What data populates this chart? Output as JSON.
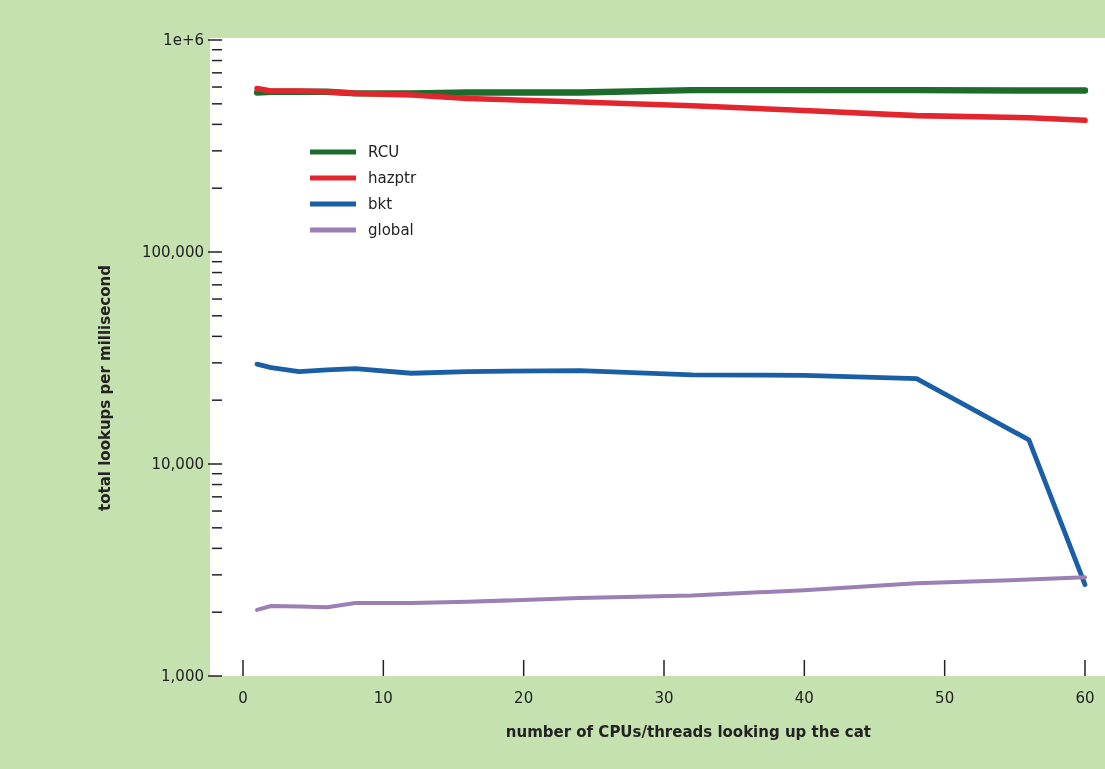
{
  "chart_data": {
    "type": "line",
    "xlabel": "number of CPUs/threads looking up the cat",
    "ylabel": "total lookups per millisecond",
    "log": "y",
    "legend": "top left",
    "x": [
      1,
      2,
      4,
      6,
      8,
      12,
      16,
      24,
      32,
      40,
      48,
      56,
      60
    ],
    "xlim": [
      -2.3,
      61.5
    ],
    "xticks": [
      0,
      10,
      20,
      30,
      40,
      50,
      60
    ],
    "ylim": [
      1000,
      1000000
    ],
    "yticks": [
      {
        "value": 1000,
        "label": "1,000"
      },
      {
        "value": 2000,
        "label": null
      },
      {
        "value": 3000,
        "label": null
      },
      {
        "value": 4000,
        "label": null
      },
      {
        "value": 5000,
        "label": null
      },
      {
        "value": 6000,
        "label": null
      },
      {
        "value": 7000,
        "label": null
      },
      {
        "value": 8000,
        "label": null
      },
      {
        "value": 9000,
        "label": null
      },
      {
        "value": 10000,
        "label": "10,000"
      },
      {
        "value": 20000,
        "label": null
      },
      {
        "value": 30000,
        "label": null
      },
      {
        "value": 40000,
        "label": null
      },
      {
        "value": 50000,
        "label": null
      },
      {
        "value": 60000,
        "label": null
      },
      {
        "value": 70000,
        "label": null
      },
      {
        "value": 80000,
        "label": null
      },
      {
        "value": 90000,
        "label": null
      },
      {
        "value": 100000,
        "label": "100,000"
      },
      {
        "value": 200000,
        "label": null
      },
      {
        "value": 300000,
        "label": null
      },
      {
        "value": 400000,
        "label": null
      },
      {
        "value": 500000,
        "label": null
      },
      {
        "value": 600000,
        "label": null
      },
      {
        "value": 700000,
        "label": null
      },
      {
        "value": 800000,
        "label": null
      },
      {
        "value": 900000,
        "label": null
      },
      {
        "value": 1000000,
        "label": "1e+6"
      }
    ],
    "series": [
      {
        "name": "RCU",
        "color": "#1e6b2e",
        "values": [
          565000,
          570000,
          570000,
          570000,
          560000,
          560000,
          565000,
          565000,
          580000,
          580000,
          580000,
          578000,
          578000
        ]
      },
      {
        "name": "hazptr",
        "color": "#e3262e",
        "values": [
          590000,
          575000,
          575000,
          570000,
          560000,
          550000,
          530000,
          510000,
          490000,
          465000,
          440000,
          430000,
          418000
        ]
      },
      {
        "name": "bkt",
        "color": "#1a5fa6",
        "values": [
          29600,
          28500,
          27300,
          27800,
          28200,
          26800,
          27300,
          27600,
          26300,
          26200,
          25300,
          13000,
          2700
        ]
      },
      {
        "name": "global",
        "color": "#9b7fb5",
        "values": [
          2050,
          2140,
          2130,
          2110,
          2210,
          2210,
          2240,
          2330,
          2400,
          2540,
          2740,
          2850,
          2920
        ]
      }
    ]
  }
}
